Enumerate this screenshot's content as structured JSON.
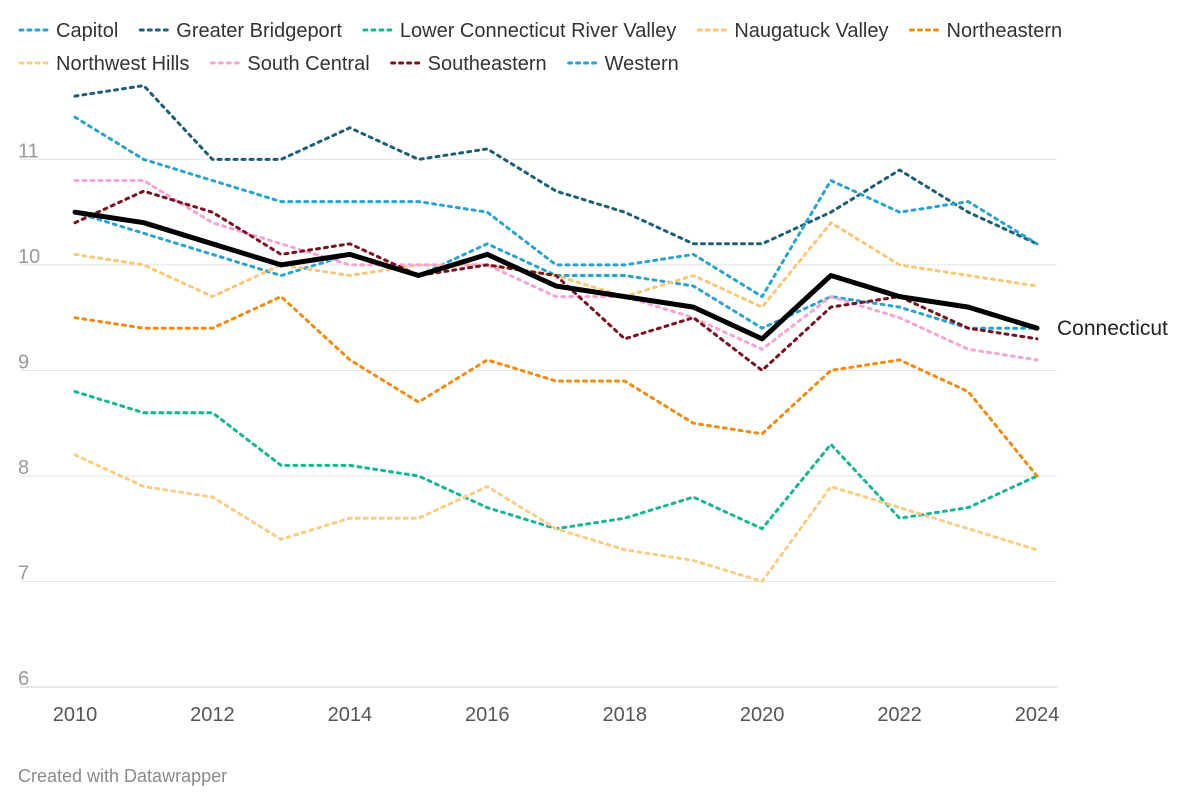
{
  "chart_data": {
    "type": "line",
    "x": [
      2010,
      2011,
      2012,
      2013,
      2014,
      2015,
      2016,
      2017,
      2018,
      2019,
      2020,
      2021,
      2022,
      2023,
      2024
    ],
    "x_ticks": [
      "2010",
      "2012",
      "2014",
      "2016",
      "2018",
      "2020",
      "2022",
      "2024"
    ],
    "y_ticks": [
      "6",
      "7",
      "8",
      "9",
      "10",
      "11"
    ],
    "ylim": [
      6,
      11.8
    ],
    "xlim": [
      2010,
      2024
    ],
    "grid": "horizontal",
    "legend_position": "top",
    "series": [
      {
        "name": "Capitol",
        "color": "#2aa4cf",
        "style": "dotted",
        "values": [
          10.5,
          10.3,
          10.1,
          9.9,
          10.1,
          9.9,
          10.2,
          9.9,
          9.9,
          9.8,
          9.4,
          9.7,
          9.6,
          9.4,
          9.4
        ]
      },
      {
        "name": "Greater Bridgeport",
        "color": "#1e5f75",
        "style": "dotted",
        "values": [
          11.6,
          11.7,
          11.0,
          11.0,
          11.3,
          11.0,
          11.1,
          10.7,
          10.5,
          10.2,
          10.2,
          10.5,
          10.9,
          10.5,
          10.2
        ]
      },
      {
        "name": "Lower Connecticut River Valley",
        "color": "#17b594",
        "style": "dotted",
        "values": [
          8.8,
          8.6,
          8.6,
          8.1,
          8.1,
          8.0,
          7.7,
          7.5,
          7.6,
          7.8,
          7.5,
          8.3,
          7.6,
          7.7,
          8.0
        ]
      },
      {
        "name": "Naugatuck Valley",
        "color": "#f7c878",
        "style": "dotted",
        "values": [
          10.1,
          10.0,
          9.7,
          10.0,
          9.9,
          10.0,
          10.0,
          9.9,
          9.7,
          9.9,
          9.6,
          10.4,
          10.0,
          9.9,
          9.8
        ]
      },
      {
        "name": "Northeastern",
        "color": "#f08c12",
        "style": "dotted",
        "values": [
          9.5,
          9.4,
          9.4,
          9.7,
          9.1,
          8.7,
          9.1,
          8.9,
          8.9,
          8.5,
          8.4,
          9.0,
          9.1,
          8.8,
          8.0
        ]
      },
      {
        "name": "Northwest Hills",
        "color": "#f9cd83",
        "style": "dotted",
        "values": [
          8.2,
          7.9,
          7.8,
          7.4,
          7.6,
          7.6,
          7.9,
          7.5,
          7.3,
          7.2,
          7.0,
          7.9,
          7.7,
          7.5,
          7.3
        ]
      },
      {
        "name": "South Central",
        "color": "#f4a6d2",
        "style": "dotted",
        "values": [
          10.8,
          10.8,
          10.4,
          10.2,
          10.0,
          10.0,
          10.0,
          9.7,
          9.7,
          9.5,
          9.2,
          9.7,
          9.5,
          9.2,
          9.1
        ]
      },
      {
        "name": "Southeastern",
        "color": "#7a1020",
        "style": "dotted",
        "values": [
          10.4,
          10.7,
          10.5,
          10.1,
          10.2,
          9.9,
          10.0,
          9.9,
          9.3,
          9.5,
          9.0,
          9.6,
          9.7,
          9.4,
          9.3
        ]
      },
      {
        "name": "Western",
        "color": "#2aa4cf",
        "style": "dotted",
        "values": [
          11.4,
          11.0,
          10.8,
          10.6,
          10.6,
          10.6,
          10.5,
          10.0,
          10.0,
          10.1,
          9.7,
          10.8,
          10.5,
          10.6,
          10.2
        ]
      }
    ],
    "highlight_series": {
      "name": "Connecticut",
      "color": "#000000",
      "style": "solid",
      "values": [
        10.5,
        10.4,
        10.2,
        10.0,
        10.1,
        9.9,
        10.1,
        9.8,
        9.7,
        9.6,
        9.3,
        9.9,
        9.7,
        9.6,
        9.4
      ]
    },
    "credit": "Created with Datawrapper"
  }
}
